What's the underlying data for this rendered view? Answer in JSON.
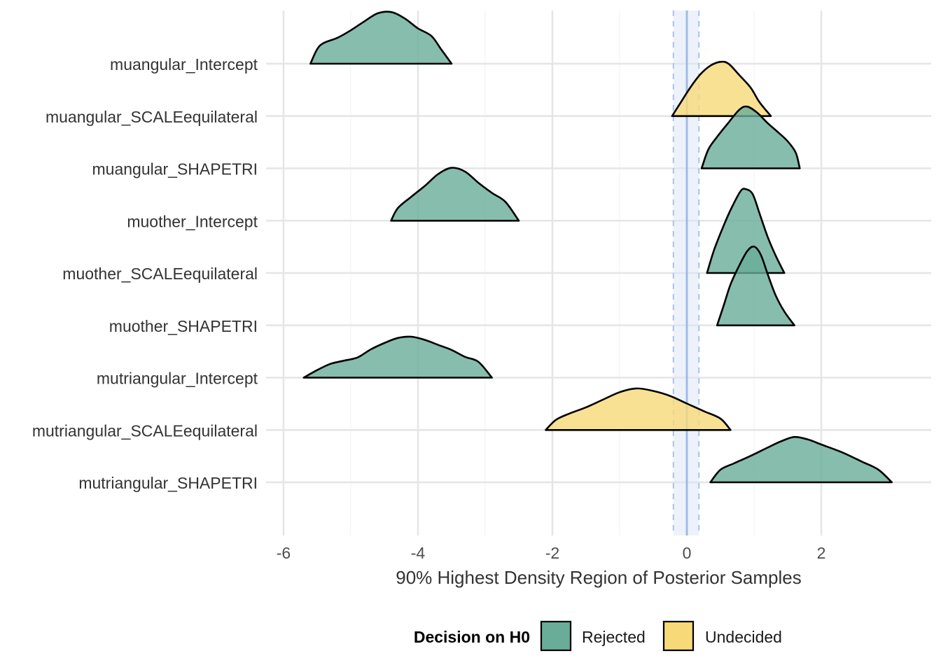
{
  "chart_data": {
    "type": "ridgeline",
    "xlabel": "90% Highest Density Region of Posterior Samples",
    "xlim": [
      -6.2,
      3.6
    ],
    "xticks": [
      -6,
      -4,
      -2,
      0,
      2
    ],
    "xtick_labels": [
      "-6",
      "-4",
      "-2",
      "0",
      "2"
    ],
    "categories": [
      "muangular_Intercept",
      "muangular_SCALEequilateral",
      "muangular_SHAPETRI",
      "muother_Intercept",
      "muother_SCALEequilateral",
      "muother_SHAPETRI",
      "mutriangular_Intercept",
      "mutriangular_SCALEequilateral",
      "mutriangular_SHAPETRI"
    ],
    "rope": {
      "center": 0,
      "lower": -0.2,
      "upper": 0.18
    },
    "legend": {
      "title": "Decision on H0",
      "position": "bottom",
      "entries": [
        {
          "label": "Rejected",
          "color": "#69AC98"
        },
        {
          "label": "Undecided",
          "color": "#F7D978"
        }
      ]
    },
    "series": [
      {
        "category": "muangular_Intercept",
        "decision": "Rejected",
        "hdr": [
          -5.6,
          -3.5
        ],
        "density": [
          [
            -5.6,
            0
          ],
          [
            -5.5,
            0.23
          ],
          [
            -5.4,
            0.33
          ],
          [
            -5.2,
            0.41
          ],
          [
            -5.0,
            0.53
          ],
          [
            -4.8,
            0.67
          ],
          [
            -4.6,
            0.8
          ],
          [
            -4.4,
            0.82
          ],
          [
            -4.2,
            0.72
          ],
          [
            -4.0,
            0.56
          ],
          [
            -3.8,
            0.44
          ],
          [
            -3.65,
            0.22
          ],
          [
            -3.5,
            0
          ]
        ]
      },
      {
        "category": "muangular_SCALEequilateral",
        "decision": "Undecided",
        "hdr": [
          -0.22,
          1.25
        ],
        "density": [
          [
            -0.22,
            0
          ],
          [
            -0.1,
            0.2
          ],
          [
            0.05,
            0.45
          ],
          [
            0.2,
            0.66
          ],
          [
            0.35,
            0.8
          ],
          [
            0.5,
            0.86
          ],
          [
            0.62,
            0.83
          ],
          [
            0.78,
            0.65
          ],
          [
            0.95,
            0.45
          ],
          [
            1.08,
            0.22
          ],
          [
            1.25,
            0
          ]
        ]
      },
      {
        "category": "muangular_SHAPETRI",
        "decision": "Rejected",
        "hdr": [
          0.22,
          1.68
        ],
        "density": [
          [
            0.22,
            0
          ],
          [
            0.32,
            0.3
          ],
          [
            0.45,
            0.5
          ],
          [
            0.6,
            0.7
          ],
          [
            0.78,
            0.93
          ],
          [
            0.9,
            0.98
          ],
          [
            1.05,
            0.88
          ],
          [
            1.2,
            0.72
          ],
          [
            1.35,
            0.58
          ],
          [
            1.5,
            0.43
          ],
          [
            1.62,
            0.25
          ],
          [
            1.68,
            0
          ]
        ]
      },
      {
        "category": "muother_Intercept",
        "decision": "Rejected",
        "hdr": [
          -4.4,
          -2.5
        ],
        "density": [
          [
            -4.4,
            0
          ],
          [
            -4.3,
            0.2
          ],
          [
            -4.1,
            0.38
          ],
          [
            -3.9,
            0.55
          ],
          [
            -3.7,
            0.74
          ],
          [
            -3.5,
            0.84
          ],
          [
            -3.3,
            0.78
          ],
          [
            -3.1,
            0.6
          ],
          [
            -2.9,
            0.44
          ],
          [
            -2.7,
            0.3
          ],
          [
            -2.5,
            0
          ]
        ]
      },
      {
        "category": "muother_SCALEequilateral",
        "decision": "Rejected",
        "hdr": [
          0.3,
          1.45
        ],
        "density": [
          [
            0.3,
            0
          ],
          [
            0.4,
            0.35
          ],
          [
            0.52,
            0.68
          ],
          [
            0.65,
            1.0
          ],
          [
            0.8,
            1.3
          ],
          [
            0.88,
            1.33
          ],
          [
            0.98,
            1.25
          ],
          [
            1.08,
            0.95
          ],
          [
            1.2,
            0.58
          ],
          [
            1.32,
            0.28
          ],
          [
            1.45,
            0
          ]
        ]
      },
      {
        "category": "muother_SHAPETRI",
        "decision": "Rejected",
        "hdr": [
          0.45,
          1.6
        ],
        "density": [
          [
            0.45,
            0
          ],
          [
            0.55,
            0.32
          ],
          [
            0.65,
            0.65
          ],
          [
            0.78,
            0.95
          ],
          [
            0.9,
            1.18
          ],
          [
            1.0,
            1.25
          ],
          [
            1.1,
            1.12
          ],
          [
            1.2,
            0.82
          ],
          [
            1.32,
            0.48
          ],
          [
            1.45,
            0.22
          ],
          [
            1.6,
            0
          ]
        ]
      },
      {
        "category": "mutriangular_Intercept",
        "decision": "Rejected",
        "hdr": [
          -5.7,
          -2.9
        ],
        "density": [
          [
            -5.7,
            0
          ],
          [
            -5.5,
            0.12
          ],
          [
            -5.3,
            0.22
          ],
          [
            -5.1,
            0.27
          ],
          [
            -4.9,
            0.32
          ],
          [
            -4.7,
            0.45
          ],
          [
            -4.5,
            0.55
          ],
          [
            -4.3,
            0.63
          ],
          [
            -4.1,
            0.65
          ],
          [
            -3.9,
            0.6
          ],
          [
            -3.7,
            0.52
          ],
          [
            -3.5,
            0.44
          ],
          [
            -3.3,
            0.33
          ],
          [
            -3.1,
            0.25
          ],
          [
            -2.9,
            0
          ]
        ]
      },
      {
        "category": "mutriangular_SCALEequilateral",
        "decision": "Undecided",
        "hdr": [
          -2.1,
          0.65
        ],
        "density": [
          [
            -2.1,
            0
          ],
          [
            -1.95,
            0.16
          ],
          [
            -1.75,
            0.26
          ],
          [
            -1.5,
            0.36
          ],
          [
            -1.25,
            0.48
          ],
          [
            -1.0,
            0.6
          ],
          [
            -0.75,
            0.66
          ],
          [
            -0.5,
            0.62
          ],
          [
            -0.25,
            0.54
          ],
          [
            0.0,
            0.42
          ],
          [
            0.25,
            0.3
          ],
          [
            0.5,
            0.18
          ],
          [
            0.65,
            0
          ]
        ]
      },
      {
        "category": "mutriangular_SHAPETRI",
        "decision": "Rejected",
        "hdr": [
          0.35,
          3.05
        ],
        "density": [
          [
            0.35,
            0
          ],
          [
            0.5,
            0.2
          ],
          [
            0.7,
            0.3
          ],
          [
            0.95,
            0.42
          ],
          [
            1.2,
            0.55
          ],
          [
            1.4,
            0.65
          ],
          [
            1.6,
            0.72
          ],
          [
            1.8,
            0.68
          ],
          [
            2.0,
            0.6
          ],
          [
            2.3,
            0.48
          ],
          [
            2.6,
            0.33
          ],
          [
            2.85,
            0.2
          ],
          [
            3.05,
            0
          ]
        ]
      }
    ]
  }
}
